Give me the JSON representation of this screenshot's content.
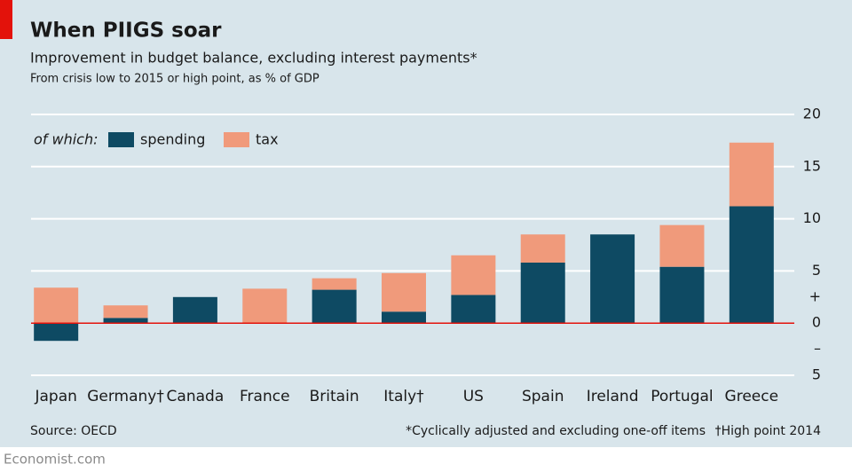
{
  "chart_data": {
    "type": "stacked_bar",
    "title": "When PIIGS soar",
    "subtitle": "Improvement in budget balance, excluding interest payments*",
    "note": "From crisis low to 2015 or high point, as % of GDP",
    "legend_title": "of which:",
    "source": "Source: OECD",
    "footnotes": [
      "*Cyclically adjusted and excluding one-off items",
      "†High point 2014"
    ],
    "credit": "Economist.com",
    "categories": [
      "Japan",
      "Germany†",
      "Canada",
      "France",
      "Britain",
      "Italy†",
      "US",
      "Spain",
      "Ireland",
      "Portugal",
      "Greece"
    ],
    "series": [
      {
        "name": "spending",
        "color": "#0e4a63",
        "values": [
          -1.7,
          0.5,
          2.5,
          0,
          3.2,
          1.1,
          2.7,
          5.8,
          8.5,
          5.4,
          11.2
        ]
      },
      {
        "name": "tax",
        "color": "#f09a7b",
        "values": [
          3.4,
          1.2,
          0,
          3.3,
          1.1,
          3.7,
          3.8,
          2.7,
          0,
          4.0,
          6.1
        ]
      }
    ],
    "ylim": [
      -5,
      20
    ],
    "yticks": [
      {
        "value": -5,
        "label": "5"
      },
      {
        "value": -2.5,
        "label": "–"
      },
      0,
      {
        "value": 2.5,
        "label": "+"
      },
      5,
      10,
      15,
      20
    ],
    "grid": true,
    "zero_line_color": "#e3120b"
  }
}
